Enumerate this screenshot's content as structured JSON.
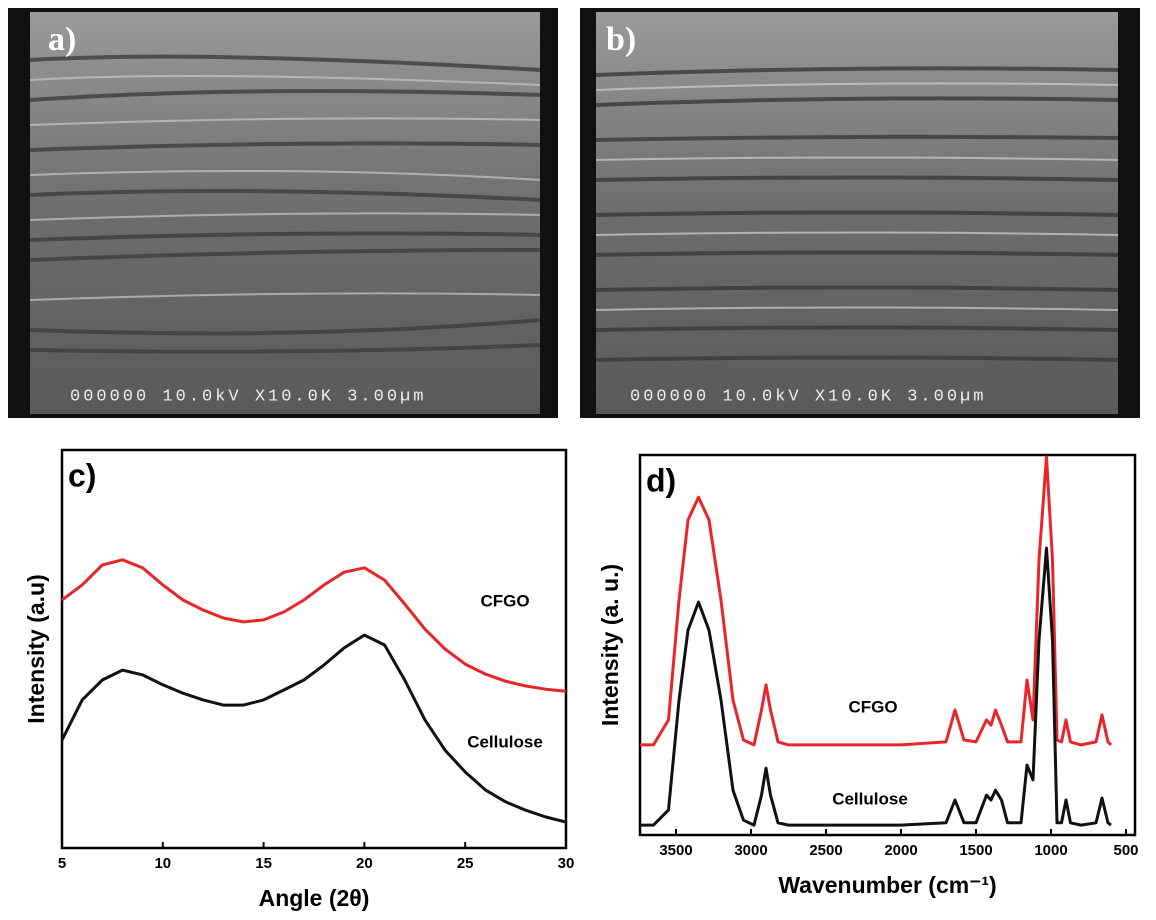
{
  "panels": [
    {
      "label": "a)",
      "caption": "000000 10.0kV X10.0K 3.00µm"
    },
    {
      "label": "b)",
      "caption": "000000 10.0kV X10.0K 3.00µm"
    }
  ],
  "chart_data": [
    {
      "type": "line",
      "label": "c)",
      "x_label": "Angle (2θ)",
      "y_label": "Intensity (a.u)",
      "x": [
        5,
        6,
        7,
        8,
        9,
        10,
        11,
        12,
        13,
        14,
        15,
        16,
        17,
        18,
        19,
        20,
        21,
        22,
        23,
        24,
        25,
        26,
        27,
        28,
        29,
        30
      ],
      "series": [
        {
          "name": "CFGO",
          "color": "#e8262a",
          "values": [
            62.3,
            66.1,
            71.1,
            72.4,
            70.4,
            66.1,
            62.3,
            59.8,
            57.8,
            56.8,
            57.3,
            59.3,
            62.3,
            66.1,
            69.3,
            70.4,
            67.3,
            61.3,
            55.0,
            50.0,
            46.2,
            43.7,
            41.9,
            40.7,
            39.9,
            39.4
          ]
        },
        {
          "name": "Cellulose",
          "color": "#111111",
          "values": [
            27.1,
            37.2,
            42.2,
            44.7,
            43.5,
            41.0,
            38.9,
            37.2,
            35.9,
            35.9,
            37.2,
            39.7,
            42.2,
            46.0,
            50.3,
            53.5,
            51.0,
            42.2,
            32.2,
            24.6,
            19.1,
            14.6,
            11.6,
            9.5,
            7.8,
            6.5
          ]
        }
      ],
      "xlim": [
        5,
        30
      ],
      "xticks": [
        5,
        10,
        15,
        20,
        25,
        30
      ],
      "ylim": [
        0,
        100
      ]
    },
    {
      "type": "line",
      "label": "d)",
      "x_label": "Wavenumber (cm⁻¹)",
      "y_label": "Intensity (a. u.)",
      "x": [
        3740,
        3650,
        3550,
        3480,
        3420,
        3350,
        3280,
        3200,
        3120,
        3050,
        2980,
        2930,
        2900,
        2870,
        2820,
        2750,
        2000,
        1700,
        1640,
        1580,
        1500,
        1430,
        1400,
        1370,
        1330,
        1290,
        1200,
        1160,
        1120,
        1080,
        1030,
        990,
        960,
        930,
        900,
        870,
        800,
        700,
        660,
        620,
        600
      ],
      "series": [
        {
          "name": "CFGO",
          "color": "#e8262a",
          "values": [
            23.7,
            23.7,
            30.3,
            61.8,
            82.9,
            88.9,
            82.9,
            61.8,
            35.5,
            25.0,
            23.7,
            32.9,
            39.5,
            32.9,
            24.5,
            23.7,
            23.7,
            24.5,
            32.9,
            25.0,
            24.5,
            30.3,
            28.9,
            32.9,
            28.9,
            24.5,
            24.5,
            40.8,
            30.3,
            72.4,
            99.5,
            72.4,
            25.0,
            24.5,
            30.3,
            24.5,
            23.7,
            24.5,
            31.6,
            24.5,
            23.7
          ]
        },
        {
          "name": "Cellulose",
          "color": "#111111",
          "values": [
            2.6,
            2.6,
            6.6,
            35.5,
            53.9,
            61.3,
            53.9,
            35.5,
            11.8,
            3.9,
            2.6,
            10.5,
            17.6,
            10.5,
            3.2,
            2.6,
            2.6,
            3.2,
            9.2,
            3.2,
            3.2,
            10.5,
            9.2,
            11.8,
            9.2,
            3.2,
            3.2,
            18.4,
            14.5,
            51.3,
            75.5,
            51.3,
            3.2,
            3.2,
            9.2,
            3.2,
            2.6,
            3.2,
            9.7,
            3.2,
            2.6
          ]
        }
      ],
      "xlim": [
        3740,
        440
      ],
      "xticks": [
        3500,
        3000,
        2500,
        2000,
        1500,
        1000,
        500
      ],
      "ylim": [
        0,
        100
      ]
    }
  ]
}
